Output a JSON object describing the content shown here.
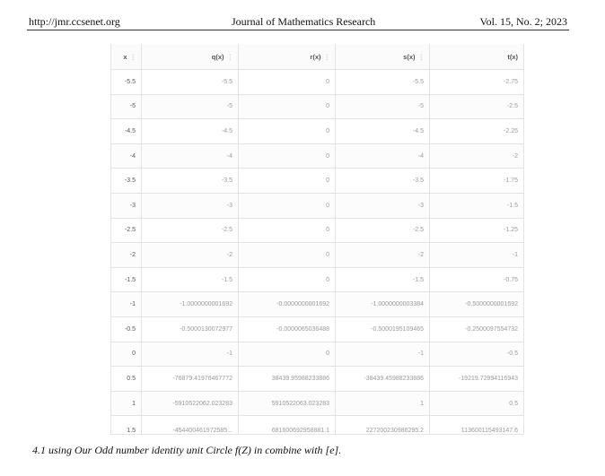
{
  "header": {
    "left": "http://jmr.ccsenet.org",
    "center": "Journal of Mathematics Research",
    "right": "Vol. 15, No. 2; 2023"
  },
  "table": {
    "columns": [
      "x",
      "q(x)",
      "r(x)",
      "s(x)",
      "t(x)"
    ],
    "column_menu_icons": [
      true,
      true,
      true,
      true,
      false
    ],
    "rows": [
      [
        "-5.5",
        "-5.5",
        "0",
        "-5.5",
        "-2.75"
      ],
      [
        "-5",
        "-5",
        "0",
        "-5",
        "-2.5"
      ],
      [
        "-4.5",
        "-4.5",
        "0",
        "-4.5",
        "-2.25"
      ],
      [
        "-4",
        "-4",
        "0",
        "-4",
        "-2"
      ],
      [
        "-3.5",
        "-3.5",
        "0",
        "-3.5",
        "-1.75"
      ],
      [
        "-3",
        "-3",
        "0",
        "-3",
        "-1.5"
      ],
      [
        "-2.5",
        "-2.5",
        "0",
        "-2.5",
        "-1.25"
      ],
      [
        "-2",
        "-2",
        "0",
        "-2",
        "-1"
      ],
      [
        "-1.5",
        "-1.5",
        "0",
        "-1.5",
        "-0.75"
      ],
      [
        "-1",
        "-1.0000000001692",
        "-0.0000000001692",
        "-1.0000000003384",
        "-0.5000000001692"
      ],
      [
        "-0.5",
        "-0.5000130072977",
        "-0.0000065036488",
        "-0.5000195109465",
        "-0.2500097554732"
      ],
      [
        "0",
        "-1",
        "0",
        "-1",
        "-0.5"
      ],
      [
        "0.5",
        "-76879.41976467772",
        "38439.95988233886",
        "-38439.45988233886",
        "-19219.72994116943"
      ],
      [
        "1",
        "-5910522062.023283",
        "5910522063.023283",
        "1",
        "0.5"
      ],
      [
        "1.5",
        "-454400461972585...",
        "681600692958881.1",
        "227200230986295.2",
        "113600115493147.6"
      ]
    ]
  },
  "caption": "4.1  using Our Odd number identity unit Circle f(Z) in combine with [e]."
}
